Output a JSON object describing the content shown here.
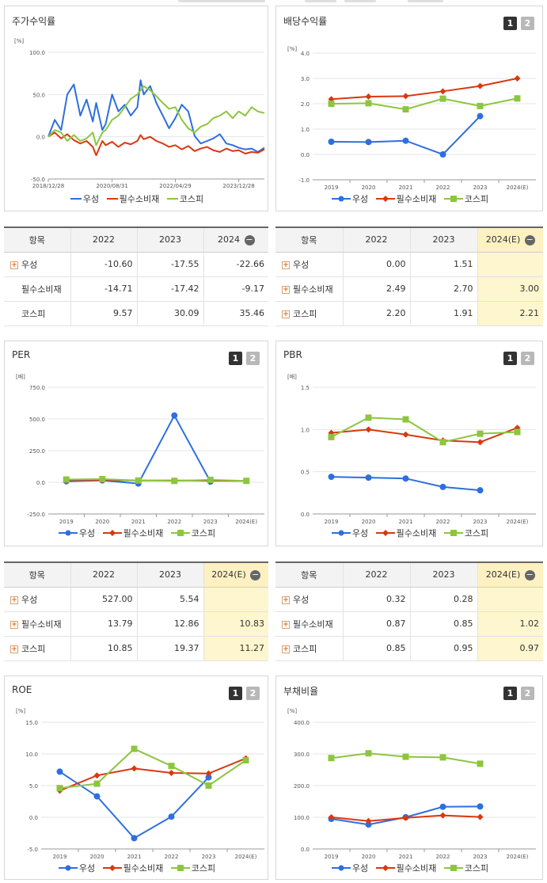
{
  "legend_names": [
    "우성",
    "필수소비재",
    "코스피"
  ],
  "colors": {
    "우성": "#2d6fdf",
    "필수소비재": "#d9380f",
    "코스피": "#8cc63f"
  },
  "buttons": [
    "1",
    "2"
  ],
  "price": {
    "title": "주가수익률",
    "unit": "[%]",
    "columns": [
      "항목",
      "2022",
      "2023",
      "2024"
    ],
    "rows": [
      {
        "name": "우성",
        "expand": true,
        "values": [
          "-10.60",
          "-17.55",
          "-22.66"
        ]
      },
      {
        "name": "필수소비재",
        "expand": false,
        "values": [
          "-14.71",
          "-17.42",
          "-9.17"
        ]
      },
      {
        "name": "코스피",
        "expand": false,
        "values": [
          "9.57",
          "30.09",
          "35.46"
        ]
      }
    ]
  },
  "dividend": {
    "title": "배당수익률",
    "unit": "[%]",
    "columns": [
      "항목",
      "2022",
      "2023",
      "2024(E)"
    ],
    "rows": [
      {
        "name": "우성",
        "expand": true,
        "values": [
          "0.00",
          "1.51",
          ""
        ]
      },
      {
        "name": "필수소비재",
        "expand": true,
        "values": [
          "2.49",
          "2.70",
          "3.00"
        ]
      },
      {
        "name": "코스피",
        "expand": true,
        "values": [
          "2.20",
          "1.91",
          "2.21"
        ]
      }
    ]
  },
  "per": {
    "title": "PER",
    "unit": "[배]",
    "columns": [
      "항목",
      "2022",
      "2023",
      "2024(E)"
    ],
    "rows": [
      {
        "name": "우성",
        "expand": true,
        "values": [
          "527.00",
          "5.54",
          ""
        ]
      },
      {
        "name": "필수소비재",
        "expand": true,
        "values": [
          "13.79",
          "12.86",
          "10.83"
        ]
      },
      {
        "name": "코스피",
        "expand": true,
        "values": [
          "10.85",
          "19.37",
          "11.27"
        ]
      }
    ]
  },
  "pbr": {
    "title": "PBR",
    "unit": "[배]",
    "columns": [
      "항목",
      "2022",
      "2023",
      "2024(E)"
    ],
    "rows": [
      {
        "name": "우성",
        "expand": true,
        "values": [
          "0.32",
          "0.28",
          ""
        ]
      },
      {
        "name": "필수소비재",
        "expand": true,
        "values": [
          "0.87",
          "0.85",
          "1.02"
        ]
      },
      {
        "name": "코스피",
        "expand": true,
        "values": [
          "0.85",
          "0.95",
          "0.97"
        ]
      }
    ]
  },
  "roe": {
    "title": "ROE",
    "unit": "[%]"
  },
  "debt": {
    "title": "부채비율",
    "unit": "[%]"
  },
  "chart_data": [
    {
      "id": "price",
      "type": "line",
      "title": "주가수익률",
      "ylabel": "[%]",
      "ylim": [
        -50,
        100
      ],
      "yticks": [
        "100.0",
        "50.0",
        "0.0",
        "-50.0"
      ],
      "ytick_values": [
        100,
        50,
        0,
        -50
      ],
      "xlim": [
        "2018-12-28",
        "2024-08-30"
      ],
      "xtick_labels": [
        "2018/12/28",
        "2020/08/31",
        "2022/04/29",
        "2023/12/28"
      ],
      "x": [
        "2018-12-28",
        "2019-02-28",
        "2019-04-30",
        "2019-06-28",
        "2019-08-30",
        "2019-10-31",
        "2019-12-30",
        "2020-02-28",
        "2020-03-31",
        "2020-05-29",
        "2020-06-30",
        "2020-08-31",
        "2020-10-30",
        "2020-12-30",
        "2021-02-26",
        "2021-04-30",
        "2021-05-31",
        "2021-06-30",
        "2021-08-31",
        "2021-10-29",
        "2021-12-30",
        "2022-02-28",
        "2022-04-29",
        "2022-06-30",
        "2022-08-31",
        "2022-10-31",
        "2022-12-29",
        "2023-02-28",
        "2023-04-28",
        "2023-06-30",
        "2023-08-31",
        "2023-10-31",
        "2023-12-28",
        "2024-02-29",
        "2024-04-30",
        "2024-06-28",
        "2024-08-30"
      ],
      "series": [
        {
          "name": "우성",
          "values": [
            0,
            20,
            8,
            50,
            62,
            25,
            44,
            18,
            40,
            8,
            15,
            50,
            30,
            38,
            25,
            35,
            67,
            50,
            60,
            40,
            25,
            10,
            22,
            38,
            30,
            1,
            -8,
            -5,
            -2,
            3,
            -8,
            -10,
            -13,
            -15,
            -14,
            -18,
            -13
          ]
        },
        {
          "name": "필수소비재",
          "values": [
            0,
            5,
            -2,
            3,
            -4,
            -8,
            -5,
            -12,
            -22,
            -5,
            -10,
            -6,
            -12,
            -7,
            -9,
            -5,
            2,
            -3,
            0,
            -5,
            -8,
            -12,
            -10,
            -15,
            -11,
            -17,
            -14,
            -12,
            -16,
            -18,
            -14,
            -17,
            -16,
            -20,
            -18,
            -19,
            -15
          ]
        },
        {
          "name": "코스피",
          "values": [
            0,
            8,
            5,
            -5,
            2,
            -5,
            -2,
            5,
            -10,
            5,
            8,
            20,
            25,
            35,
            45,
            50,
            55,
            60,
            55,
            48,
            40,
            33,
            35,
            20,
            10,
            5,
            12,
            15,
            22,
            25,
            30,
            22,
            30,
            25,
            35,
            30,
            28
          ]
        }
      ]
    },
    {
      "id": "dividend",
      "type": "line",
      "title": "배당수익률",
      "ylabel": "[%]",
      "ylim": [
        -1,
        4
      ],
      "yticks": [
        "4.0",
        "3.0",
        "2.0",
        "1.0",
        "0.0",
        "-1.0"
      ],
      "ytick_values": [
        4,
        3,
        2,
        1,
        0,
        -1
      ],
      "categories": [
        "2019",
        "2020",
        "2021",
        "2022",
        "2023",
        "2024(E)"
      ],
      "series": [
        {
          "name": "우성",
          "values": [
            0.5,
            0.49,
            0.54,
            0.0,
            1.51,
            null
          ]
        },
        {
          "name": "필수소비재",
          "values": [
            2.18,
            2.28,
            2.3,
            2.49,
            2.7,
            3.0
          ]
        },
        {
          "name": "코스피",
          "values": [
            2.0,
            2.02,
            1.78,
            2.2,
            1.91,
            2.21
          ]
        }
      ]
    },
    {
      "id": "per",
      "type": "line",
      "title": "PER",
      "ylabel": "[배]",
      "ylim": [
        -250,
        750
      ],
      "yticks": [
        "750.0",
        "500.0",
        "250.0",
        "0.0",
        "-250.0"
      ],
      "ytick_values": [
        750,
        500,
        250,
        0,
        -250
      ],
      "categories": [
        "2019",
        "2020",
        "2021",
        "2022",
        "2023",
        "2024(E)"
      ],
      "series": [
        {
          "name": "우성",
          "values": [
            8,
            15,
            -10,
            527.0,
            5.54,
            null
          ]
        },
        {
          "name": "필수소비재",
          "values": [
            18,
            17,
            14,
            13.79,
            12.86,
            10.83
          ]
        },
        {
          "name": "코스피",
          "values": [
            22,
            25,
            14,
            10.85,
            19.37,
            11.27
          ]
        }
      ]
    },
    {
      "id": "pbr",
      "type": "line",
      "title": "PBR",
      "ylabel": "[배]",
      "ylim": [
        0,
        1.5
      ],
      "yticks": [
        "1.5",
        "1.0",
        "0.5",
        "0.0"
      ],
      "ytick_values": [
        1.5,
        1.0,
        0.5,
        0
      ],
      "categories": [
        "2019",
        "2020",
        "2021",
        "2022",
        "2023",
        "2024(E)"
      ],
      "series": [
        {
          "name": "우성",
          "values": [
            0.44,
            0.43,
            0.42,
            0.32,
            0.28,
            null
          ]
        },
        {
          "name": "필수소비재",
          "values": [
            0.96,
            1.0,
            0.94,
            0.87,
            0.85,
            1.02
          ]
        },
        {
          "name": "코스피",
          "values": [
            0.91,
            1.14,
            1.12,
            0.85,
            0.95,
            0.97
          ]
        }
      ]
    },
    {
      "id": "roe",
      "type": "line",
      "title": "ROE",
      "ylabel": "[%]",
      "ylim": [
        -5,
        15
      ],
      "yticks": [
        "15.0",
        "10.0",
        "5.0",
        "0.0",
        "-5.0"
      ],
      "ytick_values": [
        15,
        10,
        5,
        0,
        -5
      ],
      "categories": [
        "2019",
        "2020",
        "2021",
        "2022",
        "2023",
        "2024(E)"
      ],
      "series": [
        {
          "name": "우성",
          "values": [
            7.2,
            3.3,
            -3.3,
            0.1,
            6.3,
            null
          ]
        },
        {
          "name": "필수소비재",
          "values": [
            4.2,
            6.6,
            7.7,
            7.0,
            6.9,
            9.3
          ]
        },
        {
          "name": "코스피",
          "values": [
            4.6,
            5.3,
            10.8,
            8.1,
            5.0,
            9.0
          ]
        }
      ]
    },
    {
      "id": "debt",
      "type": "line",
      "title": "부채비율",
      "ylabel": "[%]",
      "ylim": [
        0,
        400
      ],
      "yticks": [
        "400.0",
        "300.0",
        "200.0",
        "100.0",
        "0.0"
      ],
      "ytick_values": [
        400,
        300,
        200,
        100,
        0
      ],
      "categories": [
        "2019",
        "2020",
        "2021",
        "2022",
        "2023",
        "2024(E)"
      ],
      "series": [
        {
          "name": "우성",
          "values": [
            95,
            77,
            100,
            133,
            134,
            null
          ]
        },
        {
          "name": "필수소비재",
          "values": [
            100,
            88,
            98,
            106,
            101,
            null
          ]
        },
        {
          "name": "코스피",
          "values": [
            287,
            302,
            291,
            289,
            269,
            null
          ]
        }
      ]
    }
  ]
}
